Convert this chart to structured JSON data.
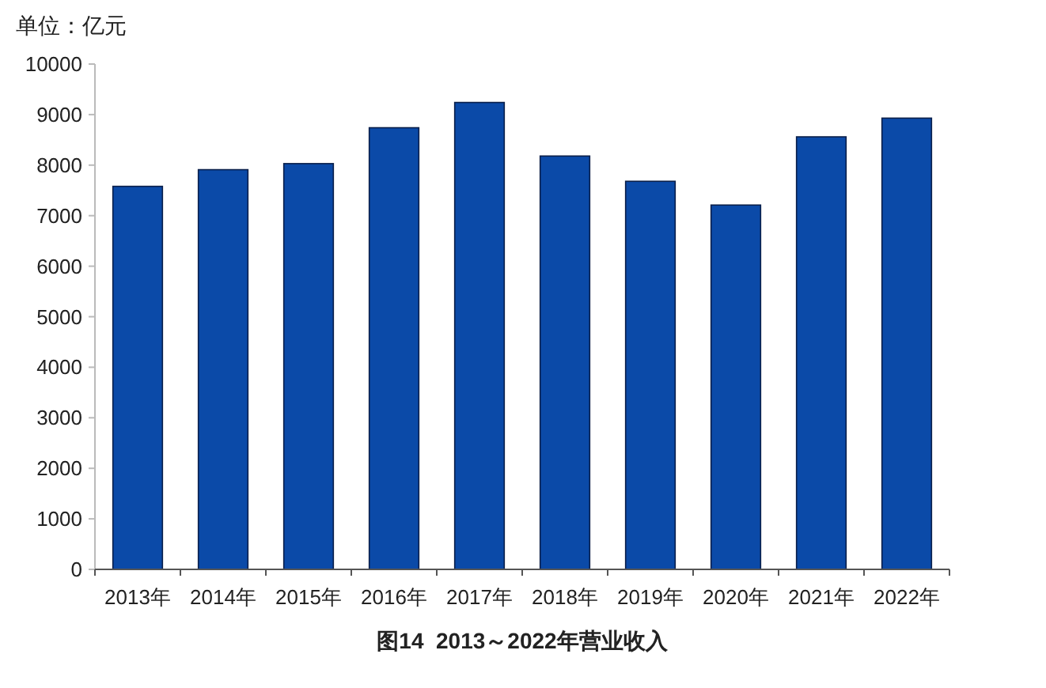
{
  "chart_data": {
    "type": "bar",
    "title": "图14  2013～2022年营业收入",
    "annotations": [
      "单位：亿元"
    ],
    "categories": [
      "2013年",
      "2014年",
      "2015年",
      "2016年",
      "2017年",
      "2018年",
      "2019年",
      "2020年",
      "2021年",
      "2022年"
    ],
    "values": [
      7580,
      7910,
      8030,
      8740,
      9240,
      8180,
      7680,
      7210,
      8560,
      8930
    ],
    "color": "#0b4aa8",
    "ylim": [
      0,
      10000
    ],
    "yticks": [
      0,
      1000,
      2000,
      3000,
      4000,
      5000,
      6000,
      7000,
      8000,
      9000,
      10000
    ],
    "grid": false
  }
}
